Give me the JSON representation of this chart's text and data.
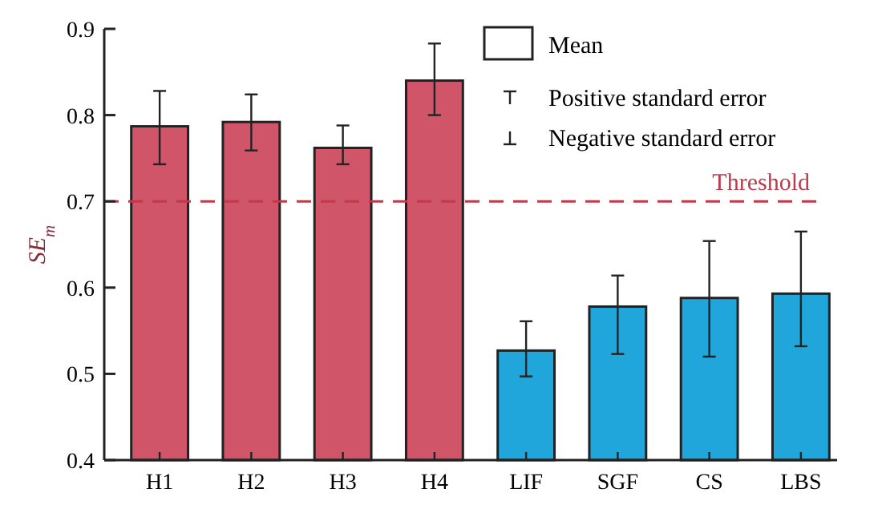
{
  "chart_data": {
    "type": "bar",
    "ylabel": "SE$_{m}$",
    "categories": [
      "H1",
      "H2",
      "H3",
      "H4",
      "LIF",
      "SGF",
      "CS",
      "LBS"
    ],
    "series": [
      {
        "name": "Mean",
        "values": [
          0.787,
          0.792,
          0.762,
          0.84,
          0.527,
          0.578,
          0.588,
          0.593
        ],
        "colors": [
          "#d05569",
          "#d05569",
          "#d05569",
          "#d05569",
          "#20a6db",
          "#20a6db",
          "#20a6db",
          "#20a6db"
        ],
        "errors": [
          [
            0.743,
            0.828
          ],
          [
            0.759,
            0.824
          ],
          [
            0.743,
            0.788
          ],
          [
            0.8,
            0.883
          ],
          [
            0.497,
            0.561
          ],
          [
            0.523,
            0.614
          ],
          [
            0.52,
            0.654
          ],
          [
            0.532,
            0.665
          ]
        ]
      }
    ],
    "ylim": [
      0.4,
      0.9
    ],
    "yticks": [
      0.4,
      0.5,
      0.6,
      0.7,
      0.8,
      0.9
    ],
    "grid": false,
    "legend": "top right",
    "ref_lines": [
      {
        "axis": "y",
        "value": 0.7,
        "label": "Threshold",
        "color": "#c0394a",
        "line_style": "dashed"
      }
    ],
    "annotations": [
      "Positive standard error",
      "Negative standard error"
    ]
  }
}
